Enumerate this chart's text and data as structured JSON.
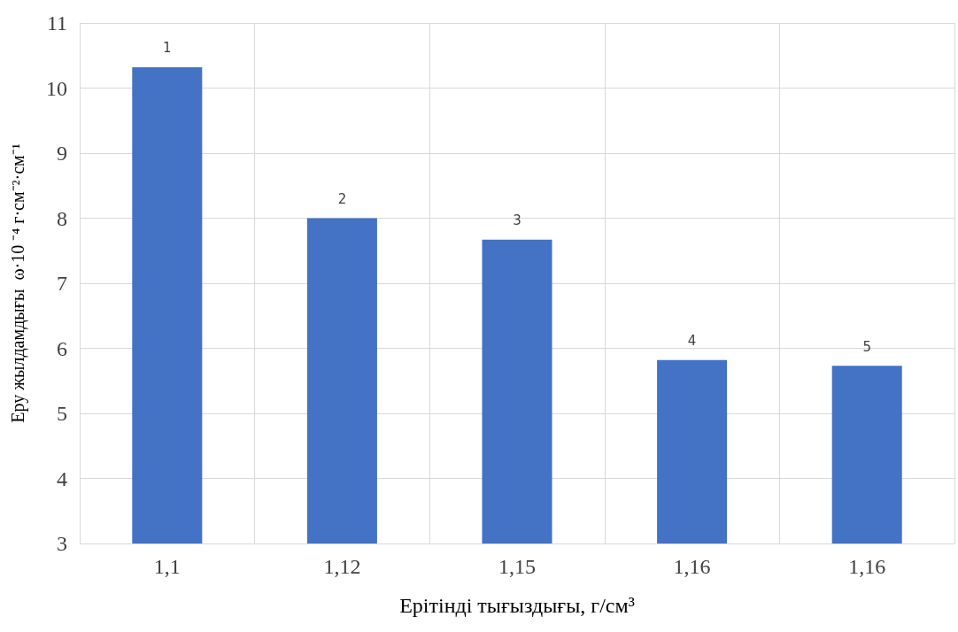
{
  "chart_data": {
    "type": "bar",
    "xlabel": "Ерітінді тығыздығы, г/см³",
    "ylabel": "Еру жылдамдығы  ω·10 ⁻⁴ г·см⁻²·см⁻¹",
    "categories": [
      "1,1",
      "1,12",
      "1,15",
      "1,16",
      "1,16"
    ],
    "values": [
      10.32,
      8.0,
      7.67,
      5.82,
      5.73
    ],
    "annotations": [
      "1",
      "2",
      "3",
      "4",
      "5"
    ],
    "color": "#4472c4",
    "ylim": [
      3,
      11
    ],
    "yticks": [
      3,
      4,
      5,
      6,
      7,
      8,
      9,
      10,
      11
    ],
    "grid": true
  }
}
